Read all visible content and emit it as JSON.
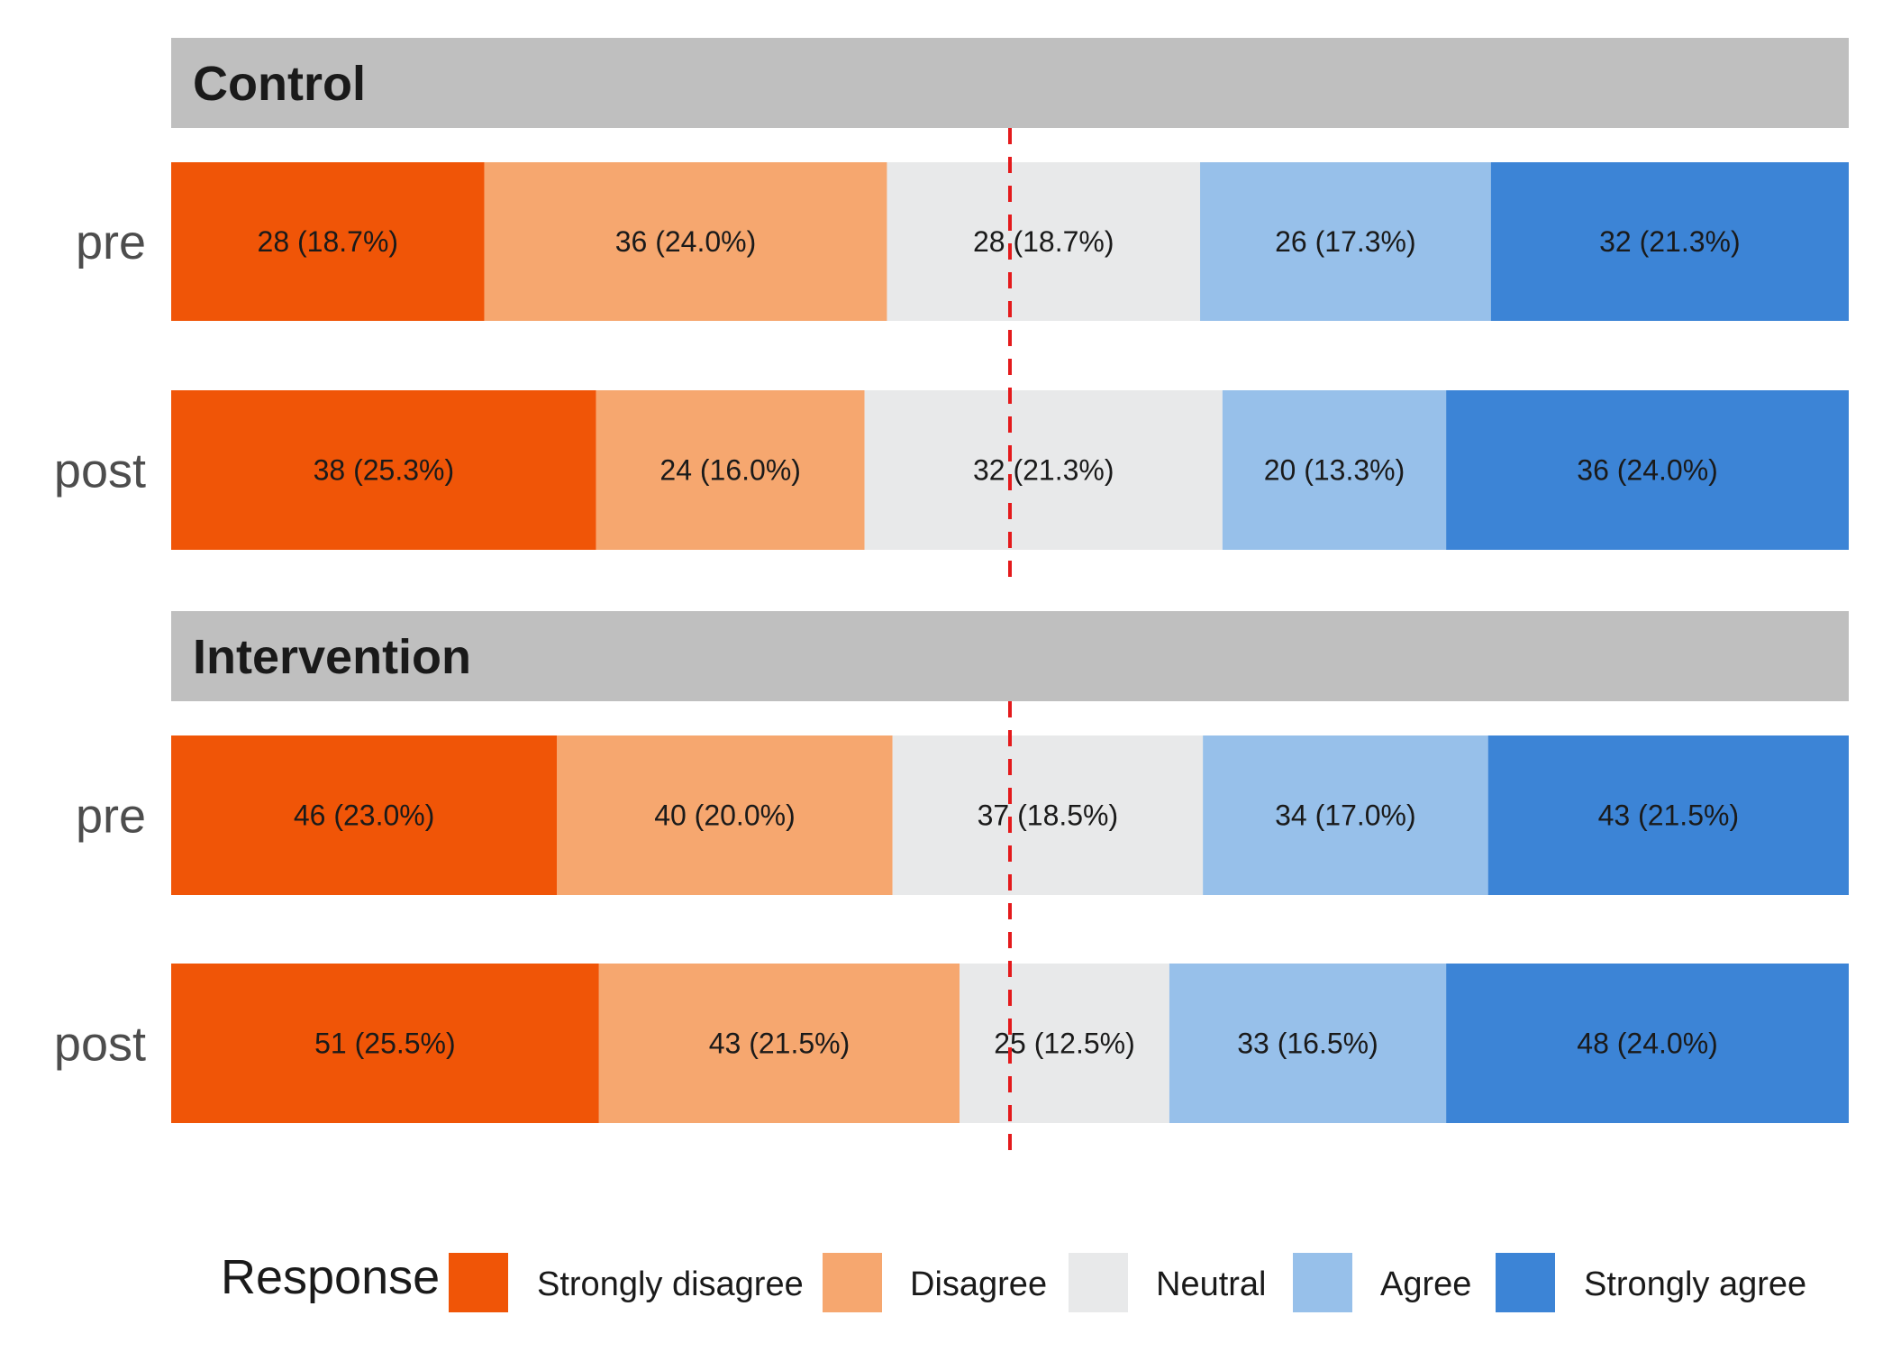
{
  "chart_data": {
    "type": "bar",
    "orientation": "horizontal",
    "stacked": true,
    "normalized": true,
    "reference_line": {
      "value": 0.5,
      "color": "#e41a1c",
      "style": "dashed"
    },
    "categories": [
      "Strongly disagree",
      "Disagree",
      "Neutral",
      "Agree",
      "Strongly agree"
    ],
    "colors": [
      "#f05507",
      "#f6a76f",
      "#e8e9ea",
      "#97c0ea",
      "#3c84d6"
    ],
    "panels": [
      {
        "title": "Control",
        "rows": [
          {
            "label": "pre",
            "values": [
              28,
              36,
              28,
              26,
              32
            ],
            "labels": [
              "28 (18.7%)",
              "36 (24.0%)",
              "28 (18.7%)",
              "26 (17.3%)",
              "32 (21.3%)"
            ]
          },
          {
            "label": "post",
            "values": [
              38,
              24,
              32,
              20,
              36
            ],
            "labels": [
              "38 (25.3%)",
              "24 (16.0%)",
              "32 (21.3%)",
              "20 (13.3%)",
              "36 (24.0%)"
            ]
          }
        ]
      },
      {
        "title": "Intervention",
        "rows": [
          {
            "label": "pre",
            "values": [
              46,
              40,
              37,
              34,
              43
            ],
            "labels": [
              "46 (23.0%)",
              "40 (20.0%)",
              "37 (18.5%)",
              "34 (17.0%)",
              "43 (21.5%)"
            ]
          },
          {
            "label": "post",
            "values": [
              51,
              43,
              25,
              33,
              48
            ],
            "labels": [
              "51 (25.5%)",
              "43 (21.5%)",
              "25 (12.5%)",
              "33 (16.5%)",
              "48 (24.0%)"
            ]
          }
        ]
      }
    ],
    "legend": {
      "title": "Response",
      "position": "bottom"
    }
  }
}
